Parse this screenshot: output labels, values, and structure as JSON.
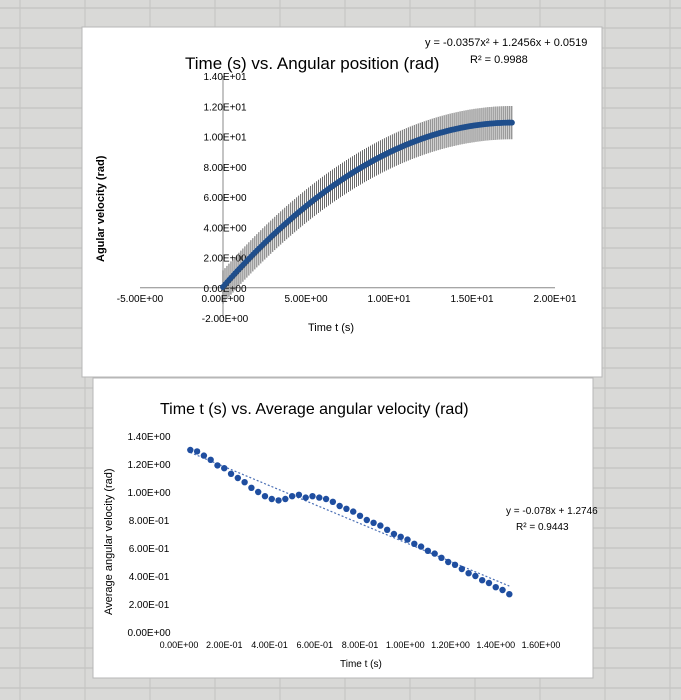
{
  "chart_data": [
    {
      "type": "scatter",
      "title": "Time (s) vs. Angular position (rad)",
      "xlabel": "Time t (s)",
      "ylabel": "Agular velocity (rad)",
      "xlim": [
        -5,
        20
      ],
      "ylim": [
        -2,
        14
      ],
      "x_ticks": [
        "-5.00E+00",
        "0.00E+00",
        "5.00E+00",
        "1.00E+01",
        "1.50E+01",
        "2.00E+01"
      ],
      "y_ticks": [
        "-2.00E+00",
        "0.00E+00",
        "2.00E+00",
        "4.00E+00",
        "6.00E+00",
        "8.00E+00",
        "1.00E+01",
        "1.20E+01",
        "1.40E+01"
      ],
      "trendline": {
        "equation": "y = -0.0357x² + 1.2456x + 0.0519",
        "r2": "R² = 0.9988",
        "coefficients": {
          "a": -0.0357,
          "b": 1.2456,
          "c": 0.0519
        }
      },
      "series": [
        {
          "x_range": [
            0,
            17.5
          ],
          "error_bars": true,
          "color": "#1f4e8c"
        }
      ],
      "grid": false,
      "legend": "none"
    },
    {
      "type": "scatter",
      "title": "Time t (s) vs. Average angular velocity (rad)",
      "xlabel": "Time t (s)",
      "ylabel": "Average angular velocity (rad)",
      "xlim": [
        0,
        1.6
      ],
      "ylim": [
        0,
        1.4
      ],
      "x_ticks": [
        "0.00E+00",
        "2.00E-01",
        "4.00E-01",
        "6.00E-01",
        "8.00E-01",
        "1.00E+00",
        "1.20E+00",
        "1.40E+00",
        "1.60E+00"
      ],
      "y_ticks": [
        "0.00E+00",
        "2.00E-01",
        "4.00E-01",
        "6.00E-01",
        "8.00E-01",
        "1.00E+00",
        "1.20E+00",
        "1.40E+00"
      ],
      "trendline": {
        "equation": "y = -0.078x + 1.2746",
        "r2": "R² = 0.9443"
      },
      "series": [
        {
          "color": "#1f4ea0",
          "x": [
            0.05,
            0.08,
            0.11,
            0.14,
            0.17,
            0.2,
            0.23,
            0.26,
            0.29,
            0.32,
            0.35,
            0.38,
            0.41,
            0.44,
            0.47,
            0.5,
            0.53,
            0.56,
            0.59,
            0.62,
            0.65,
            0.68,
            0.71,
            0.74,
            0.77,
            0.8,
            0.83,
            0.86,
            0.89,
            0.92,
            0.95,
            0.98,
            1.01,
            1.04,
            1.07,
            1.1,
            1.13,
            1.16,
            1.19,
            1.22,
            1.25,
            1.28,
            1.31,
            1.34,
            1.37,
            1.4,
            1.43,
            1.46
          ],
          "values": [
            1.3,
            1.29,
            1.26,
            1.23,
            1.19,
            1.17,
            1.13,
            1.1,
            1.07,
            1.03,
            1.0,
            0.97,
            0.95,
            0.94,
            0.95,
            0.97,
            0.98,
            0.96,
            0.97,
            0.96,
            0.95,
            0.93,
            0.9,
            0.88,
            0.86,
            0.83,
            0.8,
            0.78,
            0.76,
            0.73,
            0.7,
            0.68,
            0.66,
            0.63,
            0.61,
            0.58,
            0.56,
            0.53,
            0.5,
            0.48,
            0.45,
            0.42,
            0.4,
            0.37,
            0.35,
            0.32,
            0.3,
            0.27
          ]
        }
      ],
      "grid": false,
      "legend": "none"
    }
  ]
}
